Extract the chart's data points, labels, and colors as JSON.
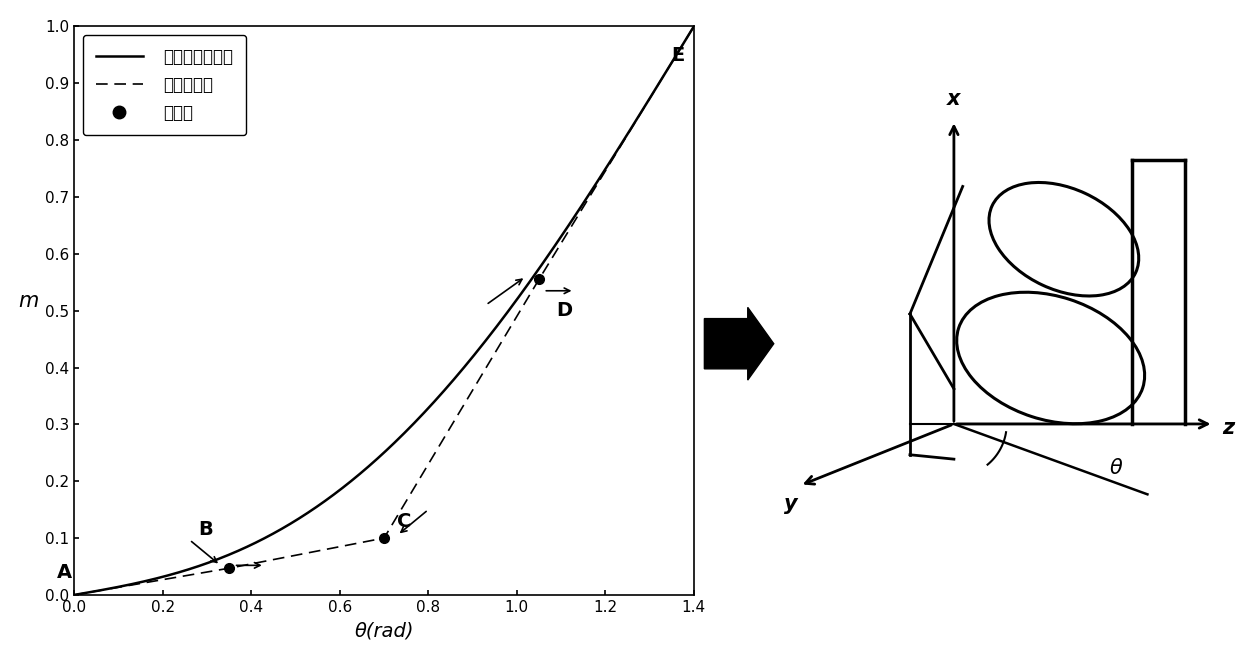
{
  "xlim": [
    0,
    1.4
  ],
  "ylim": [
    0,
    1.0
  ],
  "xticks": [
    0,
    0.2,
    0.4,
    0.6,
    0.8,
    1.0,
    1.2,
    1.4
  ],
  "yticks": [
    0,
    0.1,
    0.2,
    0.3,
    0.4,
    0.5,
    0.6,
    0.7,
    0.8,
    0.9,
    1.0
  ],
  "xlabel": "θ(rad)",
  "ylabel": "m",
  "curve_alpha": 1.8,
  "control_points": [
    [
      0.0,
      0.0
    ],
    [
      0.35,
      0.047
    ],
    [
      0.7,
      0.1
    ],
    [
      1.05,
      0.555
    ],
    [
      1.4,
      1.0
    ]
  ],
  "point_labels": [
    "A",
    "B",
    "C",
    "D",
    "E"
  ],
  "legend_labels": [
    "圆周角度展开线",
    "控制多边形",
    "控制点"
  ],
  "background_color": "#ffffff",
  "fig_width": 12.39,
  "fig_height": 6.61
}
